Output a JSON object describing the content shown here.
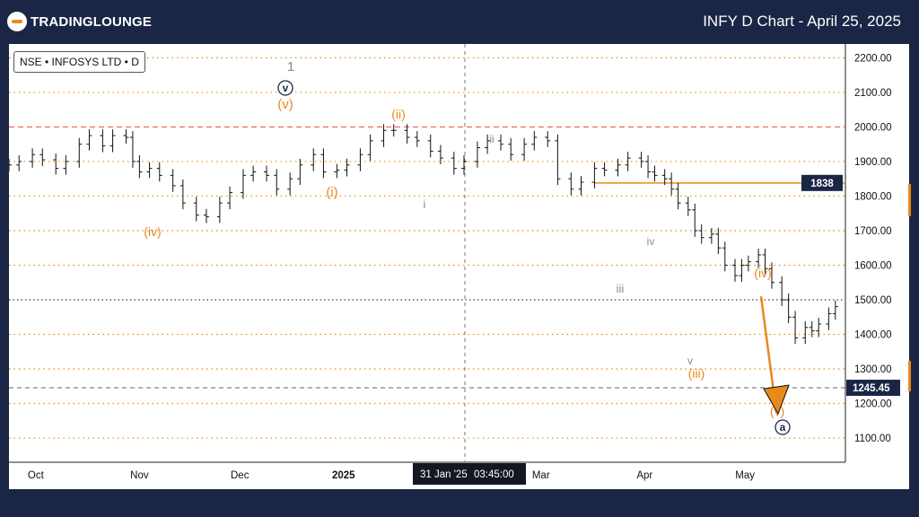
{
  "header": {
    "logo_text_main": "TRADINGLOUNGE",
    "chart_title": "INFY D Chart - April 25, 2025"
  },
  "symbol_label": "NSE • INFOSYS LTD • D",
  "crosshair": {
    "date_label": "31 Jan '25",
    "time_label": "03:45:00"
  },
  "colors": {
    "background": "#1b2646",
    "orange": "#e8891b",
    "red_dashed": "#e84a3a",
    "grey_label": "#8a8a8a",
    "navy": "#1b2646",
    "price_tag_bg": "#1b2646"
  },
  "chart_data": {
    "type": "ohlc",
    "title": "INFY D Chart - April 25, 2025",
    "xlabel": "",
    "ylabel": "",
    "ylim": [
      1030,
      2240
    ],
    "y_ticks": [
      "2200.00",
      "2100.00",
      "2000.00",
      "1900.00",
      "1800.00",
      "1700.00",
      "1600.00",
      "1500.00",
      "1400.00",
      "1300.00",
      "1200.00",
      "1100.00"
    ],
    "x_ticks": [
      "Oct",
      "Nov",
      "Dec",
      "2025",
      "Feb",
      "Mar",
      "Apr",
      "May"
    ],
    "x_tick_dates": [
      "2024-10-01",
      "2024-11-01",
      "2024-12-01",
      "2025-01-01",
      "2025-02-01",
      "2025-03-01",
      "2025-04-01",
      "2025-05-01"
    ],
    "x_range": [
      "2024-09-23",
      "2025-05-31"
    ],
    "series": [
      {
        "values": [
          [
            "2024-09-23",
            1890
          ],
          [
            "2024-09-26",
            1900
          ],
          [
            "2024-09-30",
            1920
          ],
          [
            "2024-10-03",
            1905
          ],
          [
            "2024-10-07",
            1880
          ],
          [
            "2024-10-10",
            1900
          ],
          [
            "2024-10-14",
            1950
          ],
          [
            "2024-10-17",
            1975
          ],
          [
            "2024-10-21",
            1945
          ],
          [
            "2024-10-24",
            1975
          ],
          [
            "2024-10-28",
            1970
          ],
          [
            "2024-10-30",
            1900
          ],
          [
            "2024-11-01",
            1870
          ],
          [
            "2024-11-04",
            1880
          ],
          [
            "2024-11-07",
            1860
          ],
          [
            "2024-11-11",
            1830
          ],
          [
            "2024-11-14",
            1780
          ],
          [
            "2024-11-18",
            1745
          ],
          [
            "2024-11-21",
            1740
          ],
          [
            "2024-11-25",
            1780
          ],
          [
            "2024-11-28",
            1810
          ],
          [
            "2024-12-02",
            1860
          ],
          [
            "2024-12-05",
            1870
          ],
          [
            "2024-12-09",
            1860
          ],
          [
            "2024-12-12",
            1820
          ],
          [
            "2024-12-16",
            1850
          ],
          [
            "2024-12-19",
            1890
          ],
          [
            "2024-12-23",
            1920
          ],
          [
            "2024-12-26",
            1870
          ],
          [
            "2024-12-30",
            1875
          ],
          [
            "2025-01-02",
            1890
          ],
          [
            "2025-01-06",
            1920
          ],
          [
            "2025-01-09",
            1960
          ],
          [
            "2025-01-13",
            1990
          ],
          [
            "2025-01-16",
            1990
          ],
          [
            "2025-01-20",
            1970
          ],
          [
            "2025-01-23",
            1960
          ],
          [
            "2025-01-27",
            1930
          ],
          [
            "2025-01-30",
            1910
          ],
          [
            "2025-02-03",
            1880
          ],
          [
            "2025-02-06",
            1900
          ],
          [
            "2025-02-10",
            1940
          ],
          [
            "2025-02-13",
            1960
          ],
          [
            "2025-02-17",
            1950
          ],
          [
            "2025-02-20",
            1920
          ],
          [
            "2025-02-24",
            1950
          ],
          [
            "2025-02-27",
            1970
          ],
          [
            "2025-03-03",
            1960
          ],
          [
            "2025-03-06",
            1850
          ],
          [
            "2025-03-10",
            1820
          ],
          [
            "2025-03-13",
            1840
          ],
          [
            "2025-03-17",
            1880
          ],
          [
            "2025-03-20",
            1875
          ],
          [
            "2025-03-24",
            1890
          ],
          [
            "2025-03-27",
            1910
          ],
          [
            "2025-03-31",
            1900
          ],
          [
            "2025-04-02",
            1870
          ],
          [
            "2025-04-04",
            1860
          ],
          [
            "2025-04-07",
            1850
          ],
          [
            "2025-04-09",
            1820
          ],
          [
            "2025-04-11",
            1780
          ],
          [
            "2025-04-14",
            1760
          ],
          [
            "2025-04-16",
            1700
          ],
          [
            "2025-04-18",
            1680
          ],
          [
            "2025-04-21",
            1690
          ],
          [
            "2025-04-23",
            1650
          ],
          [
            "2025-04-25",
            1600
          ],
          [
            "2025-04-28",
            1570
          ],
          [
            "2025-04-30",
            1600
          ],
          [
            "2025-05-02",
            1610
          ],
          [
            "2025-05-05",
            1630
          ],
          [
            "2025-05-07",
            1590
          ],
          [
            "2025-05-09",
            1550
          ],
          [
            "2025-05-12",
            1500
          ],
          [
            "2025-05-14",
            1450
          ],
          [
            "2025-05-16",
            1390
          ],
          [
            "2025-05-19",
            1420
          ],
          [
            "2025-05-21",
            1410
          ],
          [
            "2025-05-23",
            1430
          ],
          [
            "2025-05-26",
            1460
          ],
          [
            "2025-05-28",
            1480
          ]
        ]
      }
    ],
    "price_levels": [
      {
        "label": "1838",
        "value": 1838,
        "style": "solid-orange",
        "tag_color": "#1b2646"
      },
      {
        "label": "1245.45",
        "value": 1245.45,
        "style": "dashed-grey",
        "tag_color": "#1b2646"
      },
      {
        "label": "",
        "value": 2000,
        "style": "dashed-red"
      },
      {
        "label": "",
        "value": 1500,
        "style": "dotted-black"
      }
    ],
    "annotations": [
      {
        "text": "1",
        "color": "#8a8a8a"
      },
      {
        "text": "v",
        "color": "#1b2646",
        "circled": true
      },
      {
        "text": "(v)",
        "color": "#e8891b"
      },
      {
        "text": "(ii)",
        "color": "#e8891b"
      },
      {
        "text": "(i)",
        "color": "#e8891b"
      },
      {
        "text": "(iv)",
        "color": "#e8891b"
      },
      {
        "text": "i",
        "color": "#8a8a8a"
      },
      {
        "text": "ii",
        "color": "#8a8a8a"
      },
      {
        "text": "iii",
        "color": "#8a8a8a"
      },
      {
        "text": "iv",
        "color": "#8a8a8a"
      },
      {
        "text": "v",
        "color": "#8a8a8a"
      },
      {
        "text": "(iii)",
        "color": "#e8891b"
      },
      {
        "text": "(iv)",
        "color": "#e8891b"
      },
      {
        "text": "(v)",
        "color": "#e8891b"
      },
      {
        "text": "a",
        "color": "#1b2646",
        "circled": true
      }
    ],
    "grid": false,
    "legend": "none"
  }
}
